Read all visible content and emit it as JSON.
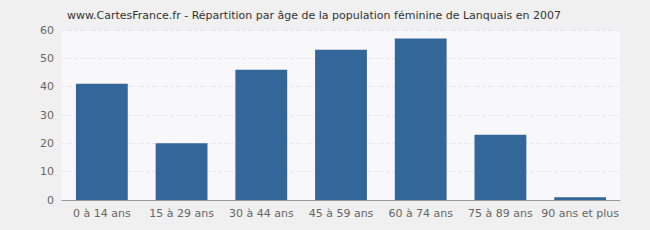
{
  "chart_data": {
    "type": "bar",
    "title": "www.CartesFrance.fr - Répartition par âge de la population féminine de Lanquais en 2007",
    "categories": [
      "0 à 14 ans",
      "15 à 29 ans",
      "30 à 44 ans",
      "45 à 59 ans",
      "60 à 74 ans",
      "75 à 89 ans",
      "90 ans et plus"
    ],
    "values": [
      41,
      20,
      46,
      53,
      57,
      23,
      1
    ],
    "color": "#336699",
    "ylim": [
      0,
      60
    ],
    "yticks": [
      0,
      10,
      20,
      30,
      40,
      50,
      60
    ],
    "grid": true
  }
}
